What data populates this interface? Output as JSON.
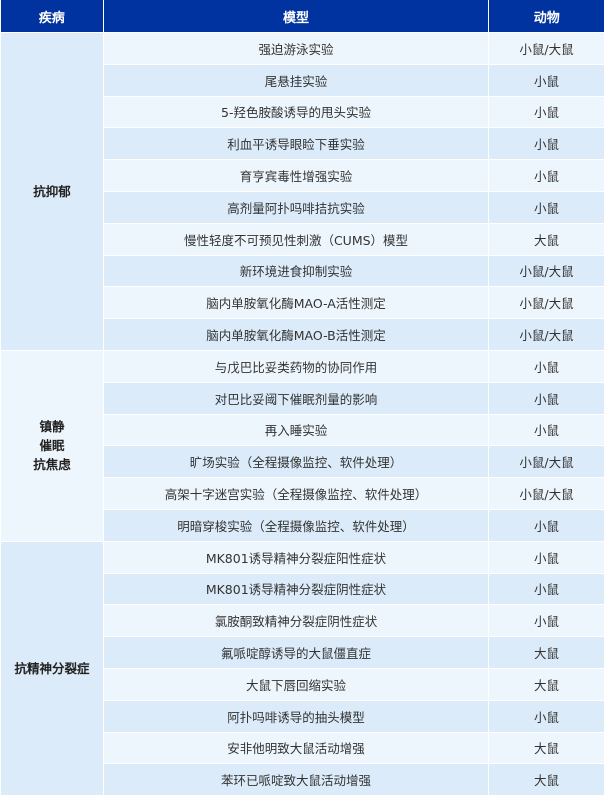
{
  "headers": [
    "疾病",
    "模型",
    "动物"
  ],
  "groups": [
    {
      "disease": [
        "抗抑郁"
      ],
      "rows": [
        [
          "强迫游泳实验",
          "小鼠/大鼠"
        ],
        [
          "尾悬挂实验",
          "小鼠"
        ],
        [
          "5-羟色胺酸诱导的甩头实验",
          "小鼠"
        ],
        [
          "利血平诱导眼睑下垂实验",
          "小鼠"
        ],
        [
          "育亨宾毒性增强实验",
          "小鼠"
        ],
        [
          "高剂量阿扑吗啡拮抗实验",
          "小鼠"
        ],
        [
          "慢性轻度不可预见性刺激（CUMS）模型",
          "大鼠"
        ],
        [
          "新环境进食抑制实验",
          "小鼠/大鼠"
        ],
        [
          "脑内单胺氧化酶MAO-A活性测定",
          "小鼠/大鼠"
        ],
        [
          "脑内单胺氧化酶MAO-B活性测定",
          "小鼠/大鼠"
        ]
      ]
    },
    {
      "disease": [
        "镇静",
        "催眠",
        "抗焦虑"
      ],
      "rows": [
        [
          "与戊巴比妥类药物的协同作用",
          "小鼠"
        ],
        [
          "对巴比妥阈下催眠剂量的影响",
          "小鼠"
        ],
        [
          "再入睡实验",
          "小鼠"
        ],
        [
          "旷场实验（全程摄像监控、软件处理）",
          "小鼠/大鼠"
        ],
        [
          "高架十字迷宫实验（全程摄像监控、软件处理）",
          "小鼠/大鼠"
        ],
        [
          "明暗穿梭实验（全程摄像监控、软件处理）",
          "小鼠"
        ]
      ]
    },
    {
      "disease": [
        "抗精神分裂症"
      ],
      "rows": [
        [
          "MK801诱导精神分裂症阳性症状",
          "小鼠"
        ],
        [
          "MK801诱导精神分裂症阴性症状",
          "小鼠"
        ],
        [
          "氯胺酮致精神分裂症阴性症状",
          "小鼠"
        ],
        [
          "氟哌啶醇诱导的大鼠僵直症",
          "大鼠"
        ],
        [
          "大鼠下唇回缩实验",
          "大鼠"
        ],
        [
          "阿扑吗啡诱导的抽头模型",
          "小鼠"
        ],
        [
          "安非他明致大鼠活动增强",
          "大鼠"
        ],
        [
          "苯环已哌啶致大鼠活动增强",
          "大鼠"
        ]
      ]
    }
  ]
}
